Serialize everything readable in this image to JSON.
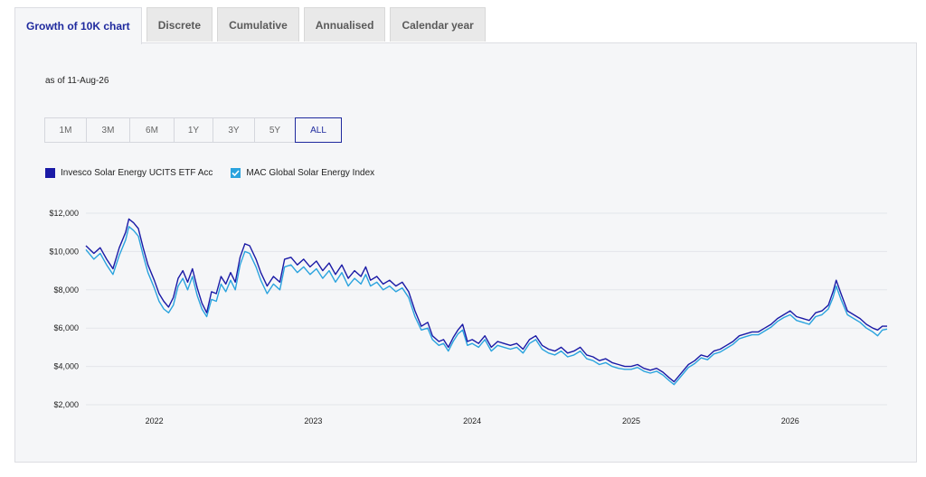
{
  "tabs": [
    {
      "label": "Growth of 10K chart",
      "active": true
    },
    {
      "label": "Discrete",
      "active": false
    },
    {
      "label": "Cumulative",
      "active": false
    },
    {
      "label": "Annualised",
      "active": false
    },
    {
      "label": "Calendar year",
      "active": false
    }
  ],
  "as_of": "as of 11-Aug-26",
  "ranges": [
    {
      "label": "1M",
      "active": false
    },
    {
      "label": "3M",
      "active": false
    },
    {
      "label": "6M",
      "active": false
    },
    {
      "label": "1Y",
      "active": false
    },
    {
      "label": "3Y",
      "active": false
    },
    {
      "label": "5Y",
      "active": false
    },
    {
      "label": "ALL",
      "active": true
    }
  ],
  "colors": {
    "accent": "#1f2a9e",
    "fund": "#1a1aa6",
    "index": "#2aa3de"
  },
  "chart_data": {
    "type": "line",
    "title": "",
    "xlabel": "",
    "ylabel": "",
    "ylim": [
      2000,
      12000
    ],
    "y_ticks": [
      "$2,000",
      "$4,000",
      "$6,000",
      "$8,000",
      "$10,000",
      "$12,000"
    ],
    "y_tick_values": [
      2000,
      4000,
      6000,
      8000,
      10000,
      12000
    ],
    "x_ticks": [
      "2022",
      "2023",
      "2024",
      "2025",
      "2026"
    ],
    "x_tick_values": [
      2022.0,
      2023.0,
      2024.0,
      2025.0,
      2026.0
    ],
    "xlim": [
      2021.57,
      2026.61
    ],
    "grid": true,
    "legend_position": "top-left",
    "series": [
      {
        "name": "Invesco Solar Energy UCITS ETF Acc",
        "color": "#1a1aa6",
        "legend_icon": "filled-square",
        "points": [
          [
            2021.57,
            10300
          ],
          [
            2021.62,
            9900
          ],
          [
            2021.66,
            10200
          ],
          [
            2021.7,
            9600
          ],
          [
            2021.74,
            9100
          ],
          [
            2021.78,
            10200
          ],
          [
            2021.82,
            11000
          ],
          [
            2021.84,
            11700
          ],
          [
            2021.87,
            11500
          ],
          [
            2021.9,
            11200
          ],
          [
            2021.93,
            10200
          ],
          [
            2021.96,
            9300
          ],
          [
            2022.0,
            8500
          ],
          [
            2022.03,
            7800
          ],
          [
            2022.06,
            7400
          ],
          [
            2022.09,
            7100
          ],
          [
            2022.12,
            7600
          ],
          [
            2022.15,
            8600
          ],
          [
            2022.18,
            9000
          ],
          [
            2022.21,
            8400
          ],
          [
            2022.24,
            9100
          ],
          [
            2022.27,
            8100
          ],
          [
            2022.3,
            7300
          ],
          [
            2022.33,
            6800
          ],
          [
            2022.36,
            7900
          ],
          [
            2022.39,
            7800
          ],
          [
            2022.42,
            8700
          ],
          [
            2022.45,
            8300
          ],
          [
            2022.48,
            8900
          ],
          [
            2022.51,
            8400
          ],
          [
            2022.54,
            9700
          ],
          [
            2022.57,
            10400
          ],
          [
            2022.6,
            10300
          ],
          [
            2022.64,
            9600
          ],
          [
            2022.67,
            8900
          ],
          [
            2022.71,
            8200
          ],
          [
            2022.75,
            8700
          ],
          [
            2022.79,
            8400
          ],
          [
            2022.82,
            9600
          ],
          [
            2022.86,
            9700
          ],
          [
            2022.9,
            9300
          ],
          [
            2022.94,
            9600
          ],
          [
            2022.98,
            9200
          ],
          [
            2023.02,
            9500
          ],
          [
            2023.06,
            9000
          ],
          [
            2023.1,
            9400
          ],
          [
            2023.14,
            8800
          ],
          [
            2023.18,
            9300
          ],
          [
            2023.22,
            8600
          ],
          [
            2023.26,
            9000
          ],
          [
            2023.3,
            8700
          ],
          [
            2023.33,
            9200
          ],
          [
            2023.36,
            8500
          ],
          [
            2023.4,
            8700
          ],
          [
            2023.44,
            8300
          ],
          [
            2023.48,
            8500
          ],
          [
            2023.52,
            8200
          ],
          [
            2023.56,
            8400
          ],
          [
            2023.6,
            7900
          ],
          [
            2023.64,
            6900
          ],
          [
            2023.68,
            6100
          ],
          [
            2023.72,
            6300
          ],
          [
            2023.75,
            5600
          ],
          [
            2023.79,
            5300
          ],
          [
            2023.82,
            5400
          ],
          [
            2023.85,
            5000
          ],
          [
            2023.88,
            5500
          ],
          [
            2023.91,
            5900
          ],
          [
            2023.94,
            6200
          ],
          [
            2023.97,
            5300
          ],
          [
            2024.0,
            5400
          ],
          [
            2024.04,
            5200
          ],
          [
            2024.08,
            5600
          ],
          [
            2024.12,
            5000
          ],
          [
            2024.16,
            5300
          ],
          [
            2024.2,
            5200
          ],
          [
            2024.24,
            5100
          ],
          [
            2024.28,
            5200
          ],
          [
            2024.32,
            4900
          ],
          [
            2024.36,
            5400
          ],
          [
            2024.4,
            5600
          ],
          [
            2024.44,
            5100
          ],
          [
            2024.48,
            4900
          ],
          [
            2024.52,
            4800
          ],
          [
            2024.56,
            5000
          ],
          [
            2024.6,
            4700
          ],
          [
            2024.64,
            4800
          ],
          [
            2024.68,
            5000
          ],
          [
            2024.72,
            4600
          ],
          [
            2024.76,
            4500
          ],
          [
            2024.8,
            4300
          ],
          [
            2024.84,
            4400
          ],
          [
            2024.88,
            4200
          ],
          [
            2024.92,
            4100
          ],
          [
            2024.96,
            4000
          ],
          [
            2025.0,
            4000
          ],
          [
            2025.04,
            4100
          ],
          [
            2025.08,
            3900
          ],
          [
            2025.12,
            3800
          ],
          [
            2025.16,
            3900
          ],
          [
            2025.2,
            3700
          ],
          [
            2025.24,
            3400
          ],
          [
            2025.27,
            3200
          ],
          [
            2025.3,
            3500
          ],
          [
            2025.33,
            3800
          ],
          [
            2025.36,
            4100
          ],
          [
            2025.4,
            4300
          ],
          [
            2025.44,
            4600
          ],
          [
            2025.48,
            4500
          ],
          [
            2025.52,
            4800
          ],
          [
            2025.56,
            4900
          ],
          [
            2025.6,
            5100
          ],
          [
            2025.64,
            5300
          ],
          [
            2025.68,
            5600
          ],
          [
            2025.72,
            5700
          ],
          [
            2025.76,
            5800
          ],
          [
            2025.8,
            5800
          ],
          [
            2025.84,
            6000
          ],
          [
            2025.88,
            6200
          ],
          [
            2025.92,
            6500
          ],
          [
            2025.96,
            6700
          ],
          [
            2026.0,
            6900
          ],
          [
            2026.04,
            6600
          ],
          [
            2026.08,
            6500
          ],
          [
            2026.12,
            6400
          ],
          [
            2026.16,
            6800
          ],
          [
            2026.2,
            6900
          ],
          [
            2026.24,
            7200
          ],
          [
            2026.27,
            7900
          ],
          [
            2026.29,
            8500
          ],
          [
            2026.32,
            7800
          ],
          [
            2026.36,
            6900
          ],
          [
            2026.4,
            6700
          ],
          [
            2026.44,
            6500
          ],
          [
            2026.48,
            6200
          ],
          [
            2026.52,
            6000
          ],
          [
            2026.55,
            5900
          ],
          [
            2026.58,
            6100
          ],
          [
            2026.61,
            6100
          ]
        ]
      },
      {
        "name": "MAC Global Solar Energy Index",
        "color": "#2aa3de",
        "legend_icon": "checkbox-checked",
        "points": [
          [
            2021.57,
            10100
          ],
          [
            2021.62,
            9600
          ],
          [
            2021.66,
            9900
          ],
          [
            2021.7,
            9300
          ],
          [
            2021.74,
            8800
          ],
          [
            2021.78,
            9800
          ],
          [
            2021.82,
            10600
          ],
          [
            2021.84,
            11300
          ],
          [
            2021.87,
            11100
          ],
          [
            2021.9,
            10800
          ],
          [
            2021.93,
            9800
          ],
          [
            2021.96,
            8900
          ],
          [
            2022.0,
            8100
          ],
          [
            2022.03,
            7400
          ],
          [
            2022.06,
            7000
          ],
          [
            2022.09,
            6800
          ],
          [
            2022.12,
            7200
          ],
          [
            2022.15,
            8200
          ],
          [
            2022.18,
            8600
          ],
          [
            2022.21,
            8000
          ],
          [
            2022.24,
            8700
          ],
          [
            2022.27,
            7700
          ],
          [
            2022.3,
            7000
          ],
          [
            2022.33,
            6600
          ],
          [
            2022.36,
            7500
          ],
          [
            2022.39,
            7400
          ],
          [
            2022.42,
            8300
          ],
          [
            2022.45,
            7900
          ],
          [
            2022.48,
            8500
          ],
          [
            2022.51,
            8000
          ],
          [
            2022.54,
            9300
          ],
          [
            2022.57,
            10000
          ],
          [
            2022.6,
            9900
          ],
          [
            2022.64,
            9200
          ],
          [
            2022.67,
            8500
          ],
          [
            2022.71,
            7800
          ],
          [
            2022.75,
            8300
          ],
          [
            2022.79,
            8000
          ],
          [
            2022.82,
            9200
          ],
          [
            2022.86,
            9300
          ],
          [
            2022.9,
            8900
          ],
          [
            2022.94,
            9200
          ],
          [
            2022.98,
            8800
          ],
          [
            2023.02,
            9100
          ],
          [
            2023.06,
            8600
          ],
          [
            2023.1,
            9000
          ],
          [
            2023.14,
            8400
          ],
          [
            2023.18,
            8900
          ],
          [
            2023.22,
            8200
          ],
          [
            2023.26,
            8600
          ],
          [
            2023.3,
            8300
          ],
          [
            2023.33,
            8800
          ],
          [
            2023.36,
            8200
          ],
          [
            2023.4,
            8400
          ],
          [
            2023.44,
            8000
          ],
          [
            2023.48,
            8200
          ],
          [
            2023.52,
            7900
          ],
          [
            2023.56,
            8100
          ],
          [
            2023.6,
            7600
          ],
          [
            2023.64,
            6600
          ],
          [
            2023.68,
            5900
          ],
          [
            2023.72,
            6000
          ],
          [
            2023.75,
            5400
          ],
          [
            2023.79,
            5100
          ],
          [
            2023.82,
            5200
          ],
          [
            2023.85,
            4800
          ],
          [
            2023.88,
            5300
          ],
          [
            2023.91,
            5700
          ],
          [
            2023.94,
            5900
          ],
          [
            2023.97,
            5100
          ],
          [
            2024.0,
            5200
          ],
          [
            2024.04,
            5000
          ],
          [
            2024.08,
            5400
          ],
          [
            2024.12,
            4800
          ],
          [
            2024.16,
            5100
          ],
          [
            2024.2,
            5000
          ],
          [
            2024.24,
            4900
          ],
          [
            2024.28,
            5000
          ],
          [
            2024.32,
            4700
          ],
          [
            2024.36,
            5200
          ],
          [
            2024.4,
            5400
          ],
          [
            2024.44,
            4900
          ],
          [
            2024.48,
            4700
          ],
          [
            2024.52,
            4600
          ],
          [
            2024.56,
            4800
          ],
          [
            2024.6,
            4500
          ],
          [
            2024.64,
            4600
          ],
          [
            2024.68,
            4800
          ],
          [
            2024.72,
            4400
          ],
          [
            2024.76,
            4300
          ],
          [
            2024.8,
            4100
          ],
          [
            2024.84,
            4200
          ],
          [
            2024.88,
            4000
          ],
          [
            2024.92,
            3900
          ],
          [
            2024.96,
            3850
          ],
          [
            2025.0,
            3850
          ],
          [
            2025.04,
            3950
          ],
          [
            2025.08,
            3750
          ],
          [
            2025.12,
            3650
          ],
          [
            2025.16,
            3750
          ],
          [
            2025.2,
            3550
          ],
          [
            2025.24,
            3250
          ],
          [
            2025.27,
            3050
          ],
          [
            2025.3,
            3350
          ],
          [
            2025.33,
            3650
          ],
          [
            2025.36,
            3950
          ],
          [
            2025.4,
            4150
          ],
          [
            2025.44,
            4450
          ],
          [
            2025.48,
            4350
          ],
          [
            2025.52,
            4650
          ],
          [
            2025.56,
            4750
          ],
          [
            2025.6,
            4950
          ],
          [
            2025.64,
            5150
          ],
          [
            2025.68,
            5450
          ],
          [
            2025.72,
            5550
          ],
          [
            2025.76,
            5650
          ],
          [
            2025.8,
            5650
          ],
          [
            2025.84,
            5850
          ],
          [
            2025.88,
            6050
          ],
          [
            2025.92,
            6350
          ],
          [
            2025.96,
            6550
          ],
          [
            2026.0,
            6700
          ],
          [
            2026.04,
            6400
          ],
          [
            2026.08,
            6300
          ],
          [
            2026.12,
            6200
          ],
          [
            2026.16,
            6600
          ],
          [
            2026.2,
            6700
          ],
          [
            2026.24,
            7000
          ],
          [
            2026.27,
            7600
          ],
          [
            2026.29,
            8200
          ],
          [
            2026.32,
            7500
          ],
          [
            2026.36,
            6700
          ],
          [
            2026.4,
            6500
          ],
          [
            2026.44,
            6300
          ],
          [
            2026.48,
            6000
          ],
          [
            2026.52,
            5800
          ],
          [
            2026.55,
            5600
          ],
          [
            2026.58,
            5900
          ],
          [
            2026.61,
            5950
          ]
        ]
      }
    ]
  }
}
